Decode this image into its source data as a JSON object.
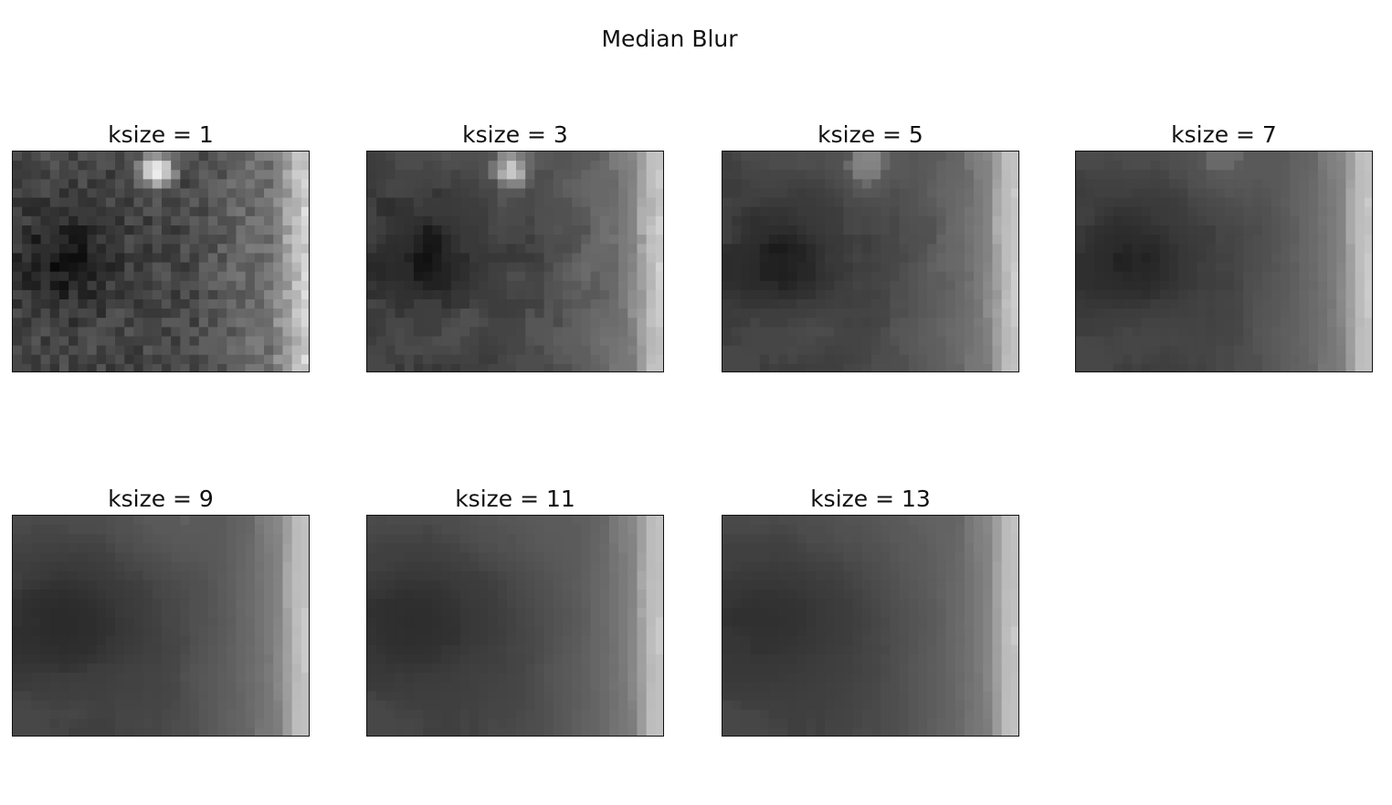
{
  "figure": {
    "title": "Median Blur"
  },
  "chart_data": {
    "type": "heatmap",
    "colormap": "gray",
    "grid": false,
    "panels": [
      {
        "title": "ksize = 1",
        "ksize": 1
      },
      {
        "title": "ksize = 3",
        "ksize": 3
      },
      {
        "title": "ksize = 5",
        "ksize": 5
      },
      {
        "title": "ksize = 7",
        "ksize": 7
      },
      {
        "title": "ksize = 9",
        "ksize": 9
      },
      {
        "title": "ksize = 11",
        "ksize": 11
      },
      {
        "title": "ksize = 13",
        "ksize": 13
      }
    ]
  }
}
